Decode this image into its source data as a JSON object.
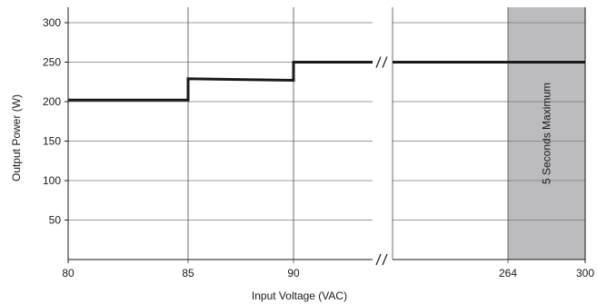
{
  "chart_data": {
    "type": "line",
    "title": "",
    "xlabel": "Input Voltage (VAC)",
    "ylabel": "Output Power (W)",
    "ylim": [
      0,
      320
    ],
    "x_ticks": [
      {
        "value": 80,
        "label": "80"
      },
      {
        "value": 85,
        "label": "85"
      },
      {
        "value": 90,
        "label": "90"
      },
      {
        "value": 264,
        "label": "264"
      },
      {
        "value": 300,
        "label": "300"
      }
    ],
    "y_ticks": [
      {
        "value": 50,
        "label": "50"
      },
      {
        "value": 100,
        "label": "100"
      },
      {
        "value": 150,
        "label": "150"
      },
      {
        "value": 200,
        "label": "200"
      },
      {
        "value": 250,
        "label": "250"
      },
      {
        "value": 300,
        "label": "300"
      }
    ],
    "axis_break": "between 90 and 264",
    "grid": true,
    "series": [
      {
        "points": [
          {
            "x": 80,
            "y": 202
          },
          {
            "x": 85,
            "y": 202
          },
          {
            "x": 85,
            "y": 229
          },
          {
            "x": 90,
            "y": 227
          },
          {
            "x": 90,
            "y": 250
          },
          {
            "x": 264,
            "y": 250
          },
          {
            "x": 300,
            "y": 250
          }
        ],
        "color": "#1a1a1a"
      }
    ],
    "shaded_region": {
      "x_start": 264,
      "x_end": 300,
      "label": "5 Seconds Maximum",
      "color": "#bcbcbe"
    }
  }
}
